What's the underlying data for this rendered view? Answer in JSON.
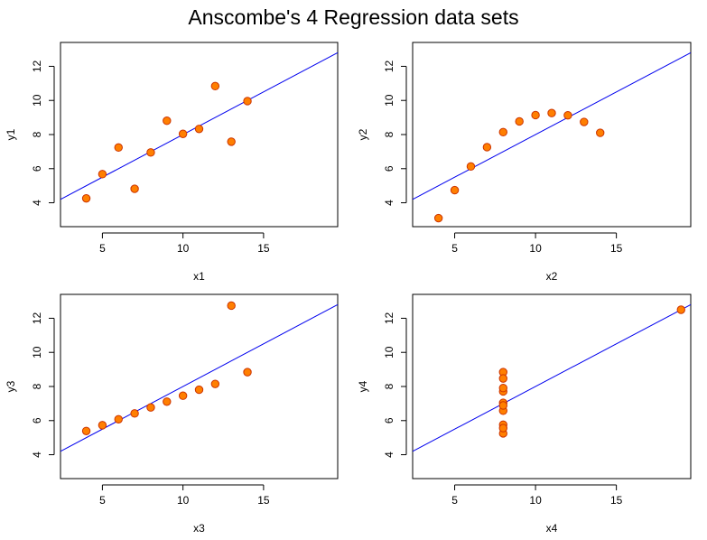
{
  "title": "Anscombe's 4 Regression data sets",
  "colors": {
    "point_fill": "#FF7F00",
    "point_stroke": "#CC3300",
    "line": "#0000EE",
    "frame": "#000000"
  },
  "chart_data": [
    {
      "type": "scatter",
      "xlabel": "x1",
      "ylabel": "y1",
      "xlim": [
        2.4,
        19.6
      ],
      "ylim": [
        2.6,
        13.4
      ],
      "xticks": [
        5,
        10,
        15
      ],
      "yticks": [
        4,
        6,
        8,
        10,
        12
      ],
      "regression": {
        "intercept": 3.0,
        "slope": 0.5
      },
      "x": [
        10,
        8,
        13,
        9,
        11,
        14,
        6,
        4,
        12,
        7,
        5
      ],
      "y": [
        8.04,
        6.95,
        7.58,
        8.81,
        8.33,
        9.96,
        7.24,
        4.26,
        10.84,
        4.82,
        5.68
      ]
    },
    {
      "type": "scatter",
      "xlabel": "x2",
      "ylabel": "y2",
      "xlim": [
        2.4,
        19.6
      ],
      "ylim": [
        2.6,
        13.4
      ],
      "xticks": [
        5,
        10,
        15
      ],
      "yticks": [
        4,
        6,
        8,
        10,
        12
      ],
      "regression": {
        "intercept": 3.0,
        "slope": 0.5
      },
      "x": [
        10,
        8,
        13,
        9,
        11,
        14,
        6,
        4,
        12,
        7,
        5
      ],
      "y": [
        9.14,
        8.14,
        8.74,
        8.77,
        9.26,
        8.1,
        6.13,
        3.1,
        9.13,
        7.26,
        4.74
      ]
    },
    {
      "type": "scatter",
      "xlabel": "x3",
      "ylabel": "y3",
      "xlim": [
        2.4,
        19.6
      ],
      "ylim": [
        2.6,
        13.4
      ],
      "xticks": [
        5,
        10,
        15
      ],
      "yticks": [
        4,
        6,
        8,
        10,
        12
      ],
      "regression": {
        "intercept": 3.0,
        "slope": 0.5
      },
      "x": [
        10,
        8,
        13,
        9,
        11,
        14,
        6,
        4,
        12,
        7,
        5
      ],
      "y": [
        7.46,
        6.77,
        12.74,
        7.11,
        7.81,
        8.84,
        6.08,
        5.39,
        8.15,
        6.42,
        5.73
      ]
    },
    {
      "type": "scatter",
      "xlabel": "x4",
      "ylabel": "y4",
      "xlim": [
        2.4,
        19.6
      ],
      "ylim": [
        2.6,
        13.4
      ],
      "xticks": [
        5,
        10,
        15
      ],
      "yticks": [
        4,
        6,
        8,
        10,
        12
      ],
      "regression": {
        "intercept": 3.0,
        "slope": 0.5
      },
      "x": [
        8,
        8,
        8,
        8,
        8,
        8,
        8,
        19,
        8,
        8,
        8
      ],
      "y": [
        6.58,
        5.76,
        7.71,
        8.84,
        8.47,
        7.04,
        5.25,
        12.5,
        5.56,
        7.91,
        6.89
      ]
    }
  ]
}
